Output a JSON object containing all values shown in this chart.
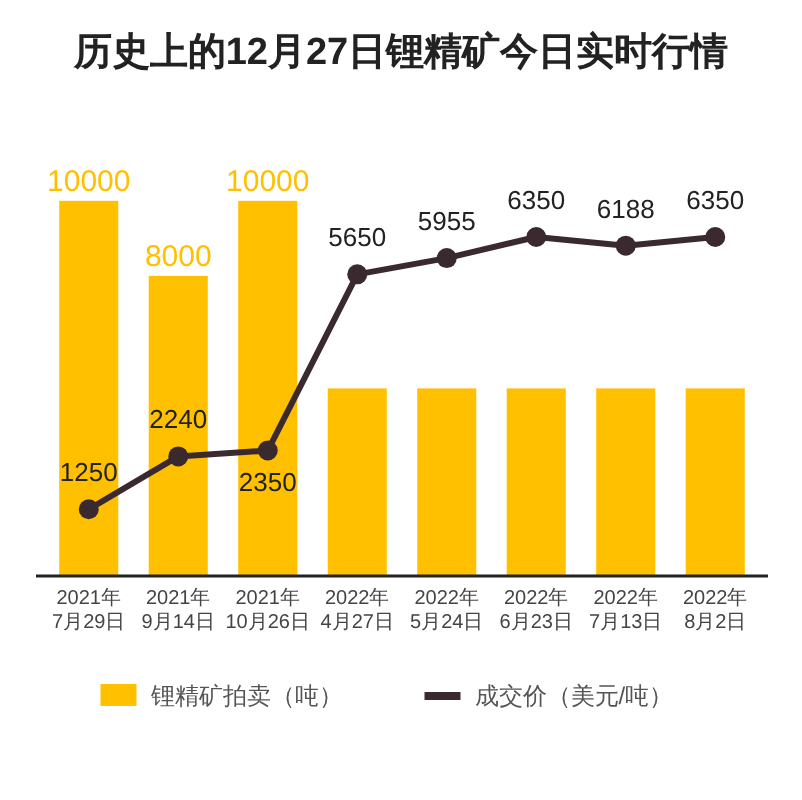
{
  "chart_data": {
    "type": "bar",
    "title": "历史上的12月27日锂精矿今日实时行情",
    "categories": [
      "2021年\n7月29日",
      "2021年\n9月14日",
      "2021年\n10月26日",
      "2022年\n4月27日",
      "2022年\n5月24日",
      "2022年\n6月23日",
      "2022年\n7月13日",
      "2022年\n8月2日"
    ],
    "series": [
      {
        "name": "锂精矿拍卖（吨）",
        "color": "#ffc000",
        "values": [
          10000,
          8000,
          10000,
          5000,
          5000,
          5000,
          5000,
          5000
        ],
        "value_labels": [
          "10000",
          "8000",
          "10000",
          null,
          null,
          null,
          null,
          null
        ]
      },
      {
        "name": "成交价（美元/吨）",
        "type": "line",
        "axis": "y2",
        "color": "#3a2a30",
        "marker": "circle",
        "line_style": "solid",
        "data_labels": true,
        "values": [
          1250,
          2240,
          2350,
          5650,
          5955,
          6350,
          6188,
          6350
        ]
      }
    ],
    "tick_labels": "x",
    "legend": "bottom"
  }
}
